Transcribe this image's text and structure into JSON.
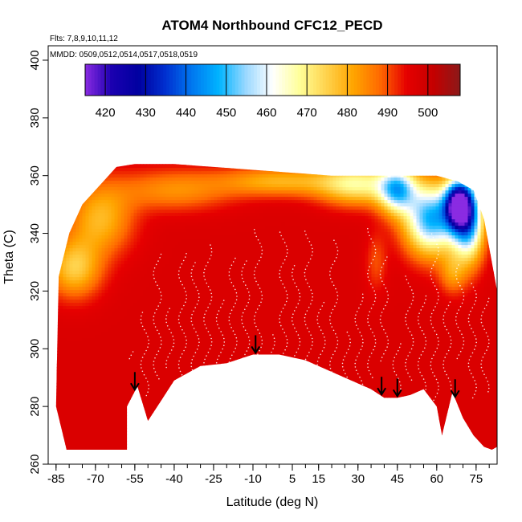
{
  "chart_data": {
    "type": "heatmap",
    "title": "ATOM4 Northbound CFC12_PECD",
    "flights_label": "Flts: 7,8,9,10,11,12",
    "dates_label": "MMDD: 0509,0512,0514,0517,0518,0519",
    "xlabel": "Latitude (deg N)",
    "ylabel": "Theta (C)",
    "xlim": [
      -88,
      83
    ],
    "ylim": [
      260,
      405
    ],
    "x_ticks": [
      -85,
      -70,
      -55,
      -40,
      -25,
      -10,
      5,
      15,
      30,
      45,
      60,
      75
    ],
    "y_ticks": [
      260,
      280,
      300,
      320,
      340,
      360,
      380,
      400
    ],
    "colorbar": {
      "range": [
        415,
        508
      ],
      "ticks": [
        420,
        430,
        440,
        450,
        460,
        470,
        480,
        490,
        500
      ],
      "colors": [
        "#8a2be2",
        "#1a00b0",
        "#0000a0",
        "#0030d0",
        "#0078f0",
        "#00b4ff",
        "#9ad8ff",
        "#ffffff",
        "#ffff99",
        "#ffd34d",
        "#ffa500",
        "#ff6a00",
        "#e60000",
        "#c40000",
        "#8b1a1a"
      ]
    },
    "arrows_lat": [
      -55,
      -9,
      39,
      45,
      67
    ],
    "upper_boundary": [
      [
        -84,
        325
      ],
      [
        -80,
        340
      ],
      [
        -75,
        350
      ],
      [
        -68,
        357
      ],
      [
        -62,
        363
      ],
      [
        -55,
        364
      ],
      [
        -40,
        364
      ],
      [
        -25,
        363
      ],
      [
        -10,
        362
      ],
      [
        5,
        361
      ],
      [
        20,
        360
      ],
      [
        35,
        360
      ],
      [
        50,
        360
      ],
      [
        60,
        360
      ],
      [
        68,
        358
      ],
      [
        74,
        355
      ],
      [
        78,
        345
      ],
      [
        81,
        330
      ],
      [
        83,
        320
      ]
    ],
    "lower_boundary": [
      [
        -85,
        280
      ],
      [
        -81,
        265
      ],
      [
        -58,
        265
      ],
      [
        -58,
        280
      ],
      [
        -54,
        287
      ],
      [
        -50,
        275
      ],
      [
        -45,
        282
      ],
      [
        -40,
        289
      ],
      [
        -30,
        294
      ],
      [
        -20,
        295
      ],
      [
        -10,
        298
      ],
      [
        0,
        298
      ],
      [
        10,
        296
      ],
      [
        25,
        290
      ],
      [
        35,
        286
      ],
      [
        40,
        283
      ],
      [
        45,
        283
      ],
      [
        50,
        284
      ],
      [
        55,
        286
      ],
      [
        60,
        280
      ],
      [
        62,
        270
      ],
      [
        66,
        285
      ],
      [
        70,
        276
      ],
      [
        74,
        270
      ],
      [
        78,
        266
      ],
      [
        81,
        265
      ],
      [
        83,
        266
      ]
    ],
    "field_base": 497,
    "features": [
      {
        "lat": -78,
        "theta": 328,
        "value": 476,
        "sx": 10,
        "sy": 10
      },
      {
        "lat": -68,
        "theta": 345,
        "value": 479,
        "sx": 12,
        "sy": 12
      },
      {
        "lat": -40,
        "theta": 355,
        "value": 484,
        "sx": 22,
        "sy": 7
      },
      {
        "lat": 0,
        "theta": 358,
        "value": 480,
        "sx": 22,
        "sy": 5
      },
      {
        "lat": 30,
        "theta": 357,
        "value": 470,
        "sx": 15,
        "sy": 7
      },
      {
        "lat": 45,
        "theta": 355,
        "value": 458,
        "sx": 7,
        "sy": 8
      },
      {
        "lat": 58,
        "theta": 345,
        "value": 448,
        "sx": 10,
        "sy": 12
      },
      {
        "lat": 72,
        "theta": 345,
        "value": 446,
        "sx": 6,
        "sy": 14
      },
      {
        "lat": 68,
        "theta": 350,
        "value": 438,
        "sx": 5,
        "sy": 8
      },
      {
        "lat": 37,
        "theta": 330,
        "value": 490,
        "sx": 4,
        "sy": 10
      },
      {
        "lat": 66,
        "theta": 326,
        "value": 485,
        "sx": 5,
        "sy": 7
      }
    ]
  }
}
